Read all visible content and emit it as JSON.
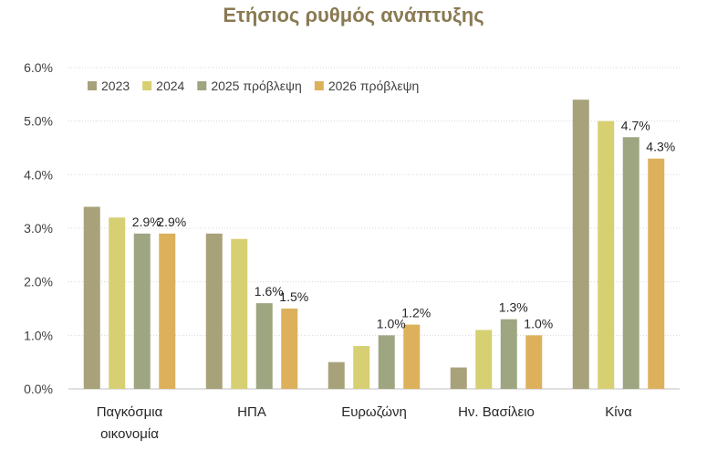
{
  "chart_data": {
    "type": "bar",
    "title": "Ετήσιος ρυθμός ανάπτυξης",
    "xlabel": "",
    "ylabel": "",
    "ylim": [
      0,
      6
    ],
    "yticks": [
      "0.0%",
      "1.0%",
      "2.0%",
      "3.0%",
      "4.0%",
      "5.0%",
      "6.0%"
    ],
    "grid": true,
    "legend_position": "top-left",
    "categories": [
      [
        "Παγκόσμια",
        "οικονομία"
      ],
      [
        "ΗΠΑ"
      ],
      [
        "Ευρωζώνη"
      ],
      [
        "Ην. Βασίλειο"
      ],
      [
        "Κίνα"
      ]
    ],
    "series": [
      {
        "name": "2023",
        "color": "#a8a27a",
        "values": [
          3.4,
          2.9,
          0.5,
          0.4,
          5.4
        ],
        "labels": [
          "",
          "",
          "",
          "",
          ""
        ]
      },
      {
        "name": "2024",
        "color": "#d6d072",
        "values": [
          3.2,
          2.8,
          0.8,
          1.1,
          5.0
        ],
        "labels": [
          "",
          "",
          "",
          "",
          ""
        ]
      },
      {
        "name": "2025 πρόβλεψη",
        "color": "#9ea581",
        "values": [
          2.9,
          1.6,
          1.0,
          1.3,
          4.7
        ],
        "labels": [
          "2.9%",
          "1.6%",
          "1.0%",
          "1.3%",
          "4.7%"
        ]
      },
      {
        "name": "2026 πρόβλεψη",
        "color": "#ddb05c",
        "values": [
          2.9,
          1.5,
          1.2,
          1.0,
          4.3
        ],
        "labels": [
          "2.9%",
          "1.5%",
          "1.2%",
          "1.0%",
          "4.3%"
        ]
      }
    ]
  }
}
